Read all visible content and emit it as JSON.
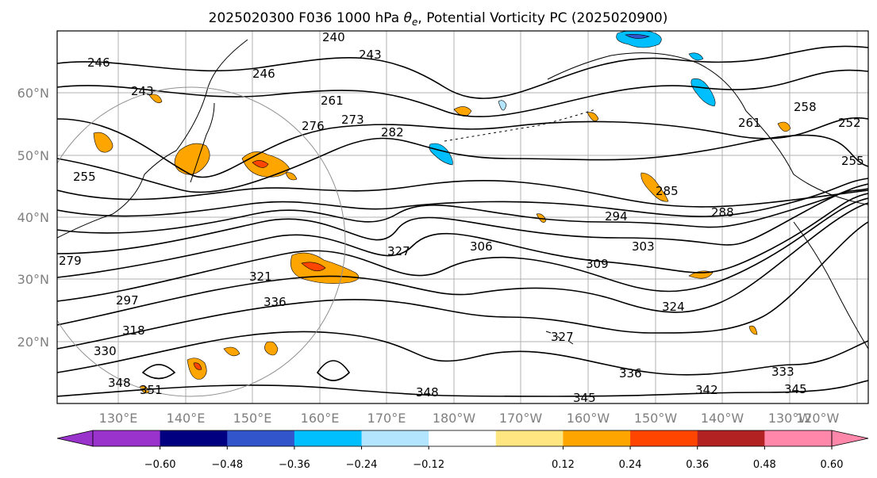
{
  "title_main": "2025020300 F036 1000 hPa ",
  "title_sym": "θ",
  "title_sub": "e",
  "title_rest": ", Potential Vorticity PC (2025020900)",
  "map": {
    "lat_labels": [
      "60°N",
      "50°N",
      "40°N",
      "30°N",
      "20°N"
    ],
    "lon_labels": [
      "130°E",
      "140°E",
      "150°E",
      "160°E",
      "170°E",
      "180°W",
      "170°W",
      "160°W",
      "150°W",
      "140°W",
      "130°W",
      "120°W"
    ],
    "contour_labels": [
      "246",
      "243",
      "246",
      "240",
      "243",
      "255",
      "279",
      "261",
      "276",
      "273",
      "282",
      "285",
      "288",
      "294",
      "303",
      "306",
      "309",
      "321",
      "327",
      "336",
      "297",
      "318",
      "330",
      "348",
      "351",
      "348",
      "345",
      "336",
      "342",
      "333",
      "345",
      "324",
      "327",
      "261",
      "258",
      "252",
      "255"
    ],
    "line_color": "#000000",
    "grid_color": "#b0b0b0",
    "land_color": "#000000"
  },
  "colorbar": {
    "tick_labels": [
      "−0.60",
      "−0.48",
      "−0.36",
      "−0.24",
      "−0.12",
      "0.12",
      "0.24",
      "0.36",
      "0.48",
      "0.60"
    ],
    "colors": [
      "#9933cc",
      "#000080",
      "#3355cc",
      "#00bfff",
      "#b3e5ff",
      "#ffffff",
      "#ffe680",
      "#ffa500",
      "#ff4500",
      "#b22222",
      "#ff88aa",
      "#ff88aa"
    ]
  },
  "pv_colors": {
    "positive_weak": "#ffe680",
    "positive_mid": "#ffa500",
    "positive_strong": "#ff4500",
    "negative_mid": "#00bfff",
    "negative_strong": "#3355cc",
    "negative_weak": "#b3e5ff"
  }
}
